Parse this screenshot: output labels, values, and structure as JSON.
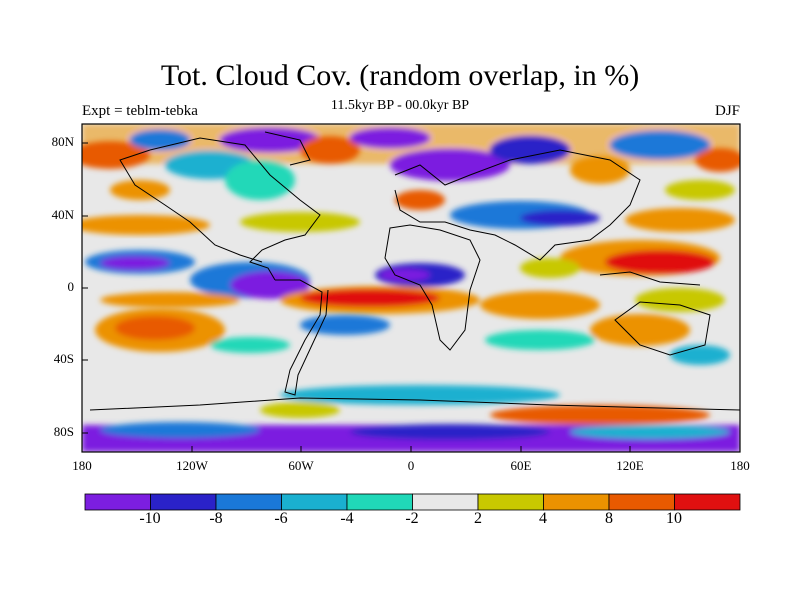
{
  "title": "Tot. Cloud Cov. (random overlap, in %)",
  "subtitle": "11.5kyr BP - 00.0kyr BP",
  "experiment_label": "Expt = teblm-tebka",
  "season_label": "DJF",
  "lat_ticks": [
    "80N",
    "40N",
    "0",
    "40S",
    "80S"
  ],
  "lon_ticks": [
    "180",
    "120W",
    "60W",
    "0",
    "60E",
    "120E",
    "180"
  ],
  "colorbar": {
    "tick_labels": [
      "-10",
      "-8",
      "-6",
      "-4",
      "-2",
      "2",
      "4",
      "8",
      "10"
    ],
    "colors": [
      "#7c1ee0",
      "#2a22c8",
      "#1a78d8",
      "#1ab0d0",
      "#20d8b8",
      "#e8e8e8",
      "#c8c800",
      "#ec9200",
      "#e85a00",
      "#e01010"
    ]
  }
}
